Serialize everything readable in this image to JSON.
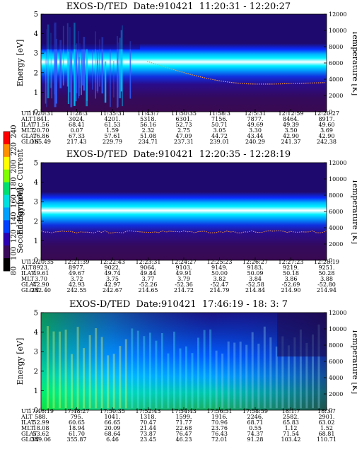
{
  "colorbar": {
    "label": "Second Harmonic Current",
    "ticks": [
      "80",
      "100",
      "120",
      "140",
      "160",
      "180",
      "200",
      "220",
      "240"
    ],
    "colors": [
      "#000000",
      "#3a0a5a",
      "#2a00b0",
      "#0040ff",
      "#00a0ff",
      "#00e0e0",
      "#00e070",
      "#80ff00",
      "#ffff00",
      "#ff9000",
      "#ff0000"
    ]
  },
  "chart_data": [
    {
      "type": "heatmap",
      "title": "EXOS-D/TED  Date:910421  11:20:31 - 12:20:27",
      "ylabel": "Energy [eV]",
      "y2label": "Temperature [K]",
      "ylim": [
        0,
        5
      ],
      "y_ticks": [
        "0",
        "1",
        "2",
        "3",
        "4",
        "5"
      ],
      "y2lim": [
        0,
        12000
      ],
      "y2_ticks": [
        "0",
        "2000",
        "4000",
        "6000",
        "8000",
        "10000",
        "12000"
      ],
      "row_labels": [
        "UT",
        "ALT",
        "ILAT",
        "MLT",
        "GLAT",
        "GLON"
      ],
      "columns": [
        [
          "11:20:31",
          "1841.",
          "71.56",
          "20.70",
          "76.86",
          "165.49"
        ],
        [
          "11:28:3",
          "3024.",
          "68.41",
          "0.07",
          "67.33",
          "217.43"
        ],
        [
          "11:35:31",
          "4201.",
          "61.53",
          "1.59",
          "57.61",
          "229.79"
        ],
        [
          "11:43:7",
          "5318.",
          "56.16",
          "2.32",
          "51.08",
          "234.71"
        ],
        [
          "11:50:35",
          "6301.",
          "52.73",
          "2.75",
          "47.09",
          "237.31"
        ],
        [
          "11:58:3",
          "7156.",
          "50.71",
          "3.05",
          "44.72",
          "239.01"
        ],
        [
          "12:5:31",
          "7877.",
          "49.69",
          "3.30",
          "43.44",
          "240.29"
        ],
        [
          "12:12:59",
          "8464.",
          "49.39",
          "3.50",
          "42.90",
          "241.37"
        ],
        [
          "12:20:27",
          "8917.",
          "49.60",
          "3.69",
          "42.90",
          "242.38"
        ]
      ]
    },
    {
      "type": "heatmap",
      "title": "EXOS-D/TED  Date:910421  12:20:35 - 12:28:19",
      "ylabel": "Energy [eV]",
      "y2label": "Temperature [K]",
      "ylim": [
        0,
        5
      ],
      "y_ticks": [
        "0",
        "1",
        "2",
        "3",
        "4",
        "5"
      ],
      "y2lim": [
        0,
        12000
      ],
      "y2_ticks": [
        "0",
        "2000",
        "4000",
        "6000",
        "8000",
        "10000",
        "12000"
      ],
      "row_labels": [
        "UT",
        "ALT",
        "ILAT",
        "MLT",
        "GLAT",
        "GLON"
      ],
      "columns": [
        [
          "12:20:35",
          "8923.",
          "49.61",
          "3.70",
          "42.90",
          "242.40"
        ],
        [
          "12:21:39",
          "8977.",
          "49.67",
          "3.72",
          "42.93",
          "242.55"
        ],
        [
          "12:22:43",
          "9022.",
          "49.74",
          "3.75",
          "42.97",
          "242.67"
        ],
        [
          "12:23:31",
          "9064.",
          "49.84",
          "3.77",
          "-52.26",
          "214.65"
        ],
        [
          "12:24:27",
          "9103.",
          "49.91",
          "3.79",
          "-52.36",
          "214.72"
        ],
        [
          "12:25:23",
          "9149.",
          "50.00",
          "3.82",
          "-52.47",
          "214.79"
        ],
        [
          "12:26:27",
          "9183.",
          "50.09",
          "3.84",
          "-52.58",
          "214.84"
        ],
        [
          "12:27:23",
          "9219.",
          "50.18",
          "3.86",
          "-52.69",
          "214.90"
        ],
        [
          "12:28:19",
          "9251.",
          "50.28",
          "3.88",
          "-52.80",
          "214.94"
        ]
      ]
    },
    {
      "type": "heatmap",
      "title": "EXOS-D/TED  Date:910421  17:46:19 - 18: 3: 7",
      "ylabel": "Energy [eV]",
      "y2label": "Temperature [K]",
      "ylim": [
        0,
        5
      ],
      "y_ticks": [
        "0",
        "1",
        "2",
        "3",
        "4",
        "5"
      ],
      "y2lim": [
        0,
        12000
      ],
      "y2_ticks": [
        "0",
        "2000",
        "4000",
        "6000",
        "8000",
        "10000",
        "12000"
      ],
      "row_labels": [
        "UT",
        "ALT",
        "ILAT",
        "MLT",
        "GLAT",
        "GLON"
      ],
      "columns": [
        [
          "17:46:19",
          "588.",
          "52.99",
          "18.08",
          "53.62",
          "349.06"
        ],
        [
          "17:48:27",
          "795.",
          "60.65",
          "18.94",
          "61.70",
          "355.87"
        ],
        [
          "17:50:35",
          "1041.",
          "66.65",
          "20.09",
          "68.64",
          "6.46"
        ],
        [
          "17:52:43",
          "1318.",
          "70.47",
          "21.44",
          "73.87",
          "23.45"
        ],
        [
          "17:54:43",
          "1599.",
          "71.77",
          "22.68",
          "76.47",
          "46.23"
        ],
        [
          "17:56:51",
          "1916.",
          "70.96",
          "23.76",
          "76.43",
          "72.01"
        ],
        [
          "17:58:59",
          "2246.",
          "68.71",
          "0.55",
          "74.37",
          "91.28"
        ],
        [
          "18:1:7",
          "2582.",
          "65.83",
          "1.12",
          "71.54",
          "103.42"
        ],
        [
          "18:3:7",
          "2901.",
          "63.02",
          "1.52",
          "68.81",
          "110.71"
        ]
      ]
    }
  ]
}
